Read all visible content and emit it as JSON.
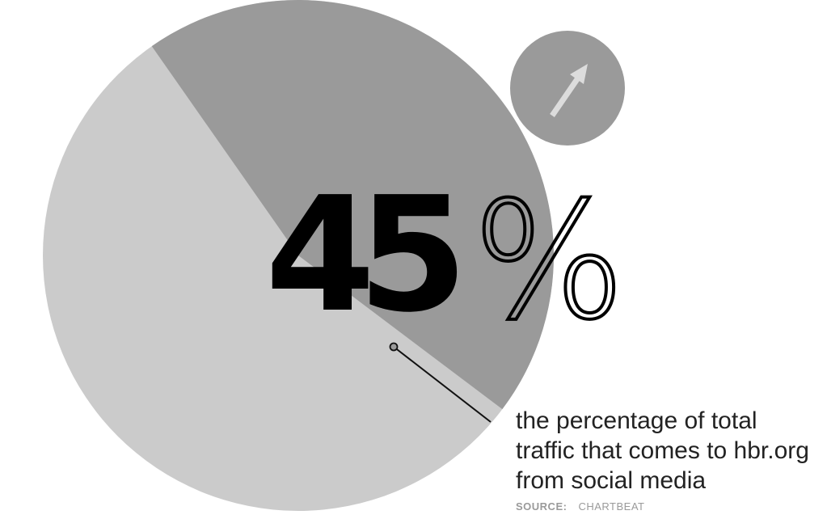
{
  "chart_data": {
    "type": "pie",
    "title": "",
    "slices": [
      {
        "label": "",
        "value": 45
      },
      {
        "label": "",
        "value": 55
      }
    ],
    "colors": {
      "highlight_slice": "#9a9a9a",
      "other_slice": "#cbcbcb",
      "badge": "#9a9a9a",
      "arrow": "#dcdcdc"
    }
  },
  "headline": {
    "number": "45",
    "unit": "%"
  },
  "caption": {
    "line1": "the percentage of total",
    "line2": "traffic that comes to hbr.org",
    "line3": "from social media"
  },
  "source": {
    "label": "SOURCE:",
    "value": "CHARTBEAT"
  },
  "icons": {
    "trend": "arrow-up-right-icon"
  }
}
